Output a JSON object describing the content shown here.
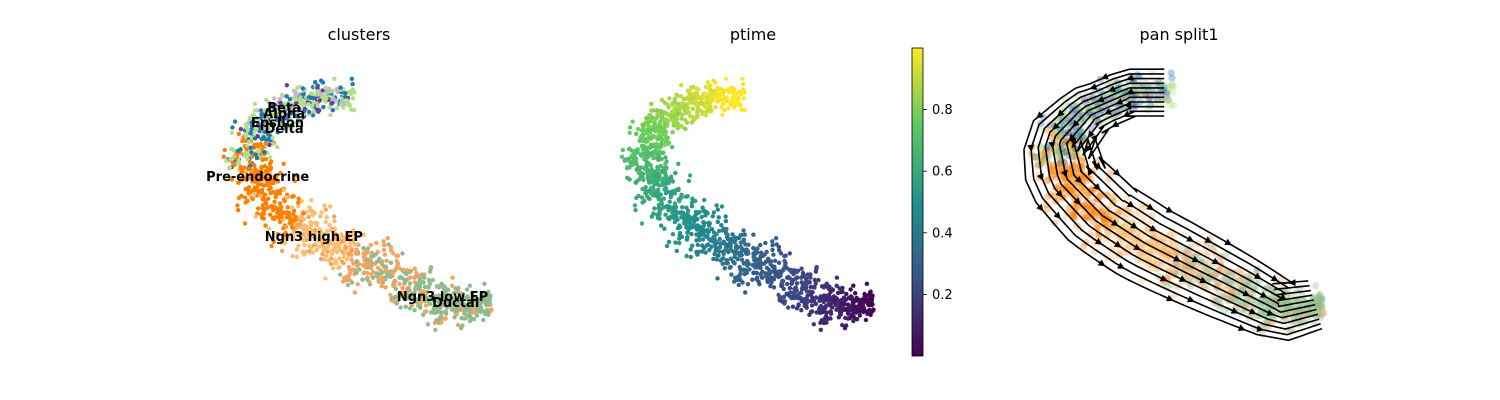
{
  "chart_data": [
    {
      "type": "scatter",
      "title": "clusters",
      "legend": "on data",
      "grid": false,
      "colors": {
        "Ductal": "#8fbc8f",
        "Ngn3 low EP": "#f4a460",
        "Ngn3 high EP": "#fdbf6f",
        "Pre-endocrine": "#ff7f00",
        "Beta": "#b2df8a",
        "Alpha": "#1f78b4",
        "Delta": "#6a3d9a",
        "Epsilon": "#cab2d6"
      },
      "labels": [
        {
          "text": "Beta",
          "x": 0.27,
          "y": 0.81
        },
        {
          "text": "Alpha",
          "x": 0.27,
          "y": 0.79
        },
        {
          "text": "Epsilon",
          "x": 0.25,
          "y": 0.76
        },
        {
          "text": "Delta",
          "x": 0.27,
          "y": 0.74
        },
        {
          "text": "Pre-endocrine",
          "x": 0.19,
          "y": 0.58
        },
        {
          "text": "Ngn3 high EP",
          "x": 0.36,
          "y": 0.38
        },
        {
          "text": "Ngn3 low EP",
          "x": 0.75,
          "y": 0.18
        },
        {
          "text": "Ductal",
          "x": 0.79,
          "y": 0.16
        }
      ]
    },
    {
      "type": "scatter",
      "title": "ptime",
      "colorbar": {
        "colormap": "viridis",
        "range": [
          0.0,
          1.0
        ],
        "ticks": [
          "0.2",
          "0.4",
          "0.6",
          "0.8"
        ],
        "tick_values": [
          0.2,
          0.4,
          0.6,
          0.8
        ]
      },
      "grid": false
    },
    {
      "type": "scatter",
      "title": "pan split1",
      "overlay": "velocity streamlines",
      "stream_color": "#000000",
      "grid": false
    }
  ]
}
